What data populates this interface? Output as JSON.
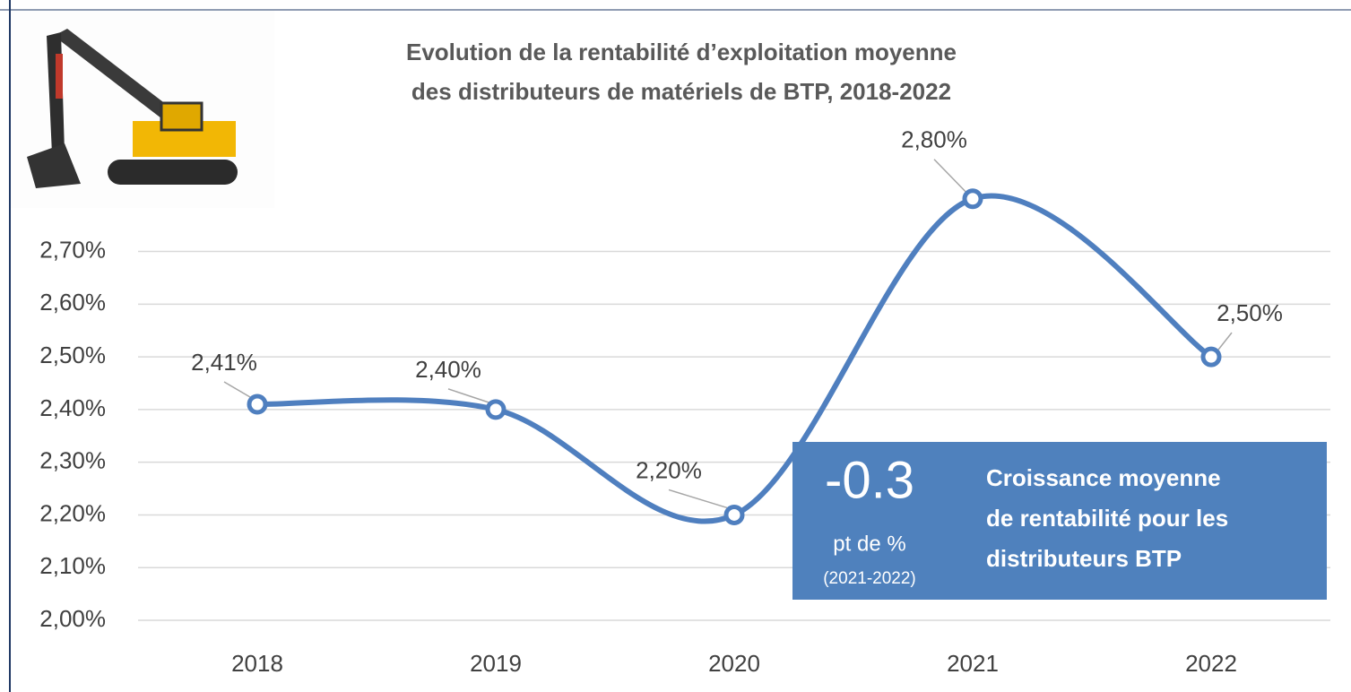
{
  "chart_data": {
    "type": "line",
    "title": [
      "Evolution de la rentabilité d’exploitation moyenne",
      "des distributeurs de matériels de BTP, 2018-2022"
    ],
    "categories": [
      "2018",
      "2019",
      "2020",
      "2021",
      "2022"
    ],
    "values": [
      2.41,
      2.4,
      2.2,
      2.8,
      2.5
    ],
    "value_labels": [
      "2,41%",
      "2,40%",
      "2,20%",
      "2,80%",
      "2,50%"
    ],
    "color": "#4f7fbf",
    "smooth": true,
    "grid": true,
    "ylim": [
      2.0,
      2.9
    ],
    "yticks": [
      {
        "value": 2.0,
        "label": "2,00%"
      },
      {
        "value": 2.1,
        "label": "2,10%"
      },
      {
        "value": 2.2,
        "label": "2,20%"
      },
      {
        "value": 2.3,
        "label": "2,30%"
      },
      {
        "value": 2.4,
        "label": "2,40%"
      },
      {
        "value": 2.5,
        "label": "2,50%"
      },
      {
        "value": 2.6,
        "label": "2,60%"
      },
      {
        "value": 2.7,
        "label": "2,70%"
      }
    ],
    "callout": {
      "value": "-0.3",
      "unit": "pt de %",
      "period": "(2021-2022)",
      "text": [
        "Croissance moyenne",
        "de rentabilité pour les",
        "distributeurs BTP"
      ]
    }
  }
}
